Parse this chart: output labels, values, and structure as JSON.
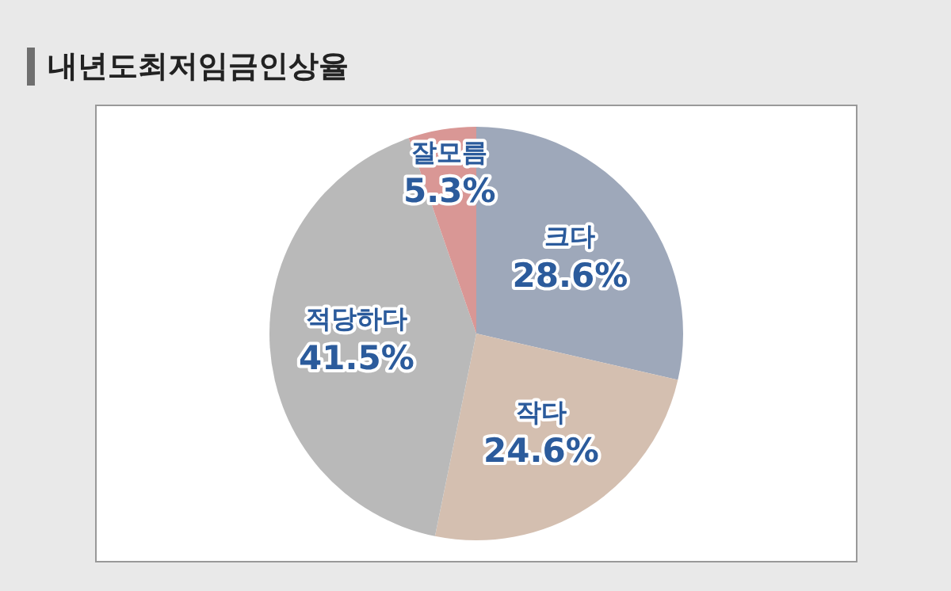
{
  "chart_data": {
    "type": "pie",
    "title": "내년도최저임금인상율",
    "categories": [
      "크다",
      "작다",
      "적당하다",
      "잘모름"
    ],
    "values": [
      28.6,
      24.6,
      41.5,
      5.3
    ],
    "colors": [
      "#9ea8ba",
      "#d4bfb0",
      "#b9b9b9",
      "#d99795"
    ],
    "value_labels": [
      "28.6%",
      "24.6%",
      "41.5%",
      "5.3%"
    ],
    "legend": false
  }
}
